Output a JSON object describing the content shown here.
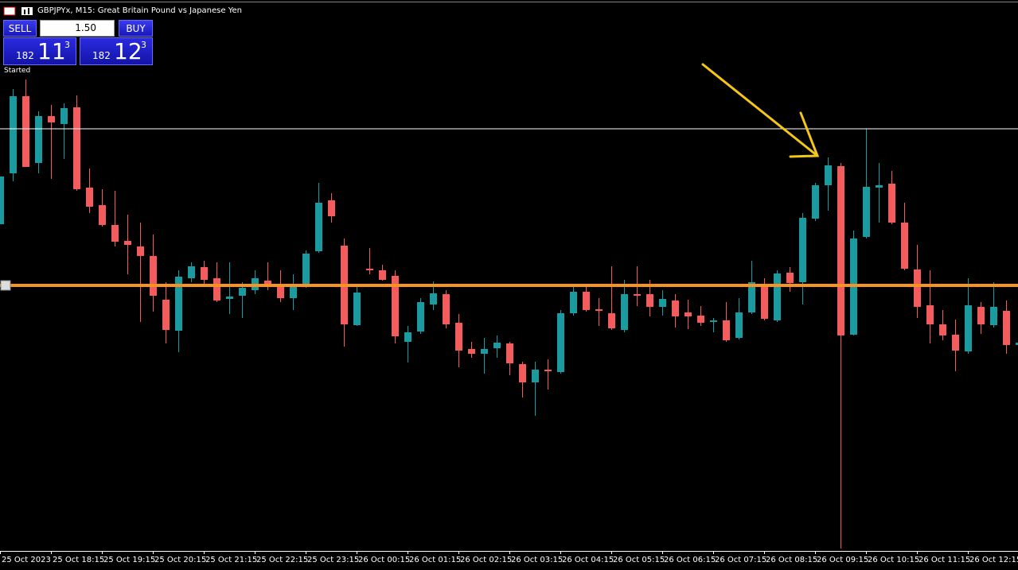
{
  "window": {
    "symbol": "GBPJPYx, M15:",
    "description": "Great Britain Pound vs Japanese Yen",
    "status": "Started"
  },
  "trade_panel": {
    "sell_label": "SELL",
    "buy_label": "BUY",
    "volume": "1.50",
    "sell_price": {
      "big": "182",
      "pips": "11",
      "point": "3"
    },
    "buy_price": {
      "big": "182",
      "pips": "12",
      "point": "3"
    }
  },
  "chart_data": {
    "type": "candlestick",
    "categories": [
      "25 Oct 2023",
      null,
      null,
      null,
      "25 Oct 18:15",
      null,
      null,
      null,
      "25 Oct 19:15",
      null,
      null,
      null,
      "25 Oct 20:15",
      null,
      null,
      null,
      "25 Oct 21:15",
      null,
      null,
      null,
      "25 Oct 22:15",
      null,
      null,
      null,
      "25 Oct 23:15",
      null,
      null,
      null,
      "26 Oct 00:15",
      null,
      null,
      null,
      "26 Oct 01:15",
      null,
      null,
      null,
      "26 Oct 02:15",
      null,
      null,
      null,
      "26 Oct 03:15",
      null,
      null,
      null,
      "26 Oct 04:15",
      null,
      null,
      null,
      "26 Oct 05:15",
      null,
      null,
      null,
      "26 Oct 06:15",
      null,
      null,
      null,
      "26 Oct 07:15",
      null,
      null,
      null,
      "26 Oct 08:15",
      null,
      null,
      null,
      "26 Oct 09:15",
      null,
      null,
      null,
      "26 Oct 10:15",
      null,
      null,
      null,
      "26 Oct 11:15",
      null,
      null,
      null,
      "26 Oct 12:15",
      null,
      null,
      null,
      null
    ],
    "open": [
      182.436,
      182.564,
      182.758,
      182.59,
      182.708,
      182.688,
      182.73,
      182.528,
      182.484,
      182.434,
      182.394,
      182.38,
      182.356,
      182.246,
      182.168,
      182.3,
      182.328,
      182.3,
      182.248,
      182.256,
      182.27,
      182.294,
      182.286,
      182.25,
      182.28,
      182.368,
      182.496,
      182.382,
      182.182,
      182.324,
      182.32,
      182.306,
      182.14,
      182.166,
      182.234,
      182.26,
      182.188,
      182.122,
      182.11,
      182.124,
      182.136,
      182.084,
      182.038,
      182.07,
      182.064,
      182.212,
      182.266,
      182.222,
      182.212,
      182.17,
      182.26,
      182.26,
      182.228,
      182.244,
      182.214,
      182.206,
      182.19,
      182.194,
      182.15,
      182.214,
      182.282,
      182.194,
      182.314,
      182.29,
      182.45,
      182.534,
      182.582,
      182.158,
      182.404,
      182.528,
      182.538,
      182.44,
      182.322,
      182.232,
      182.184,
      182.158,
      182.116,
      182.228,
      182.182,
      182.218,
      182.132
    ],
    "high": [
      182.556,
      182.776,
      182.8,
      182.72,
      182.736,
      182.74,
      182.76,
      182.576,
      182.524,
      182.52,
      182.46,
      182.44,
      182.41,
      182.29,
      182.32,
      182.34,
      182.344,
      182.34,
      182.34,
      182.29,
      182.32,
      182.34,
      182.32,
      182.31,
      182.37,
      182.54,
      182.514,
      182.4,
      182.28,
      182.376,
      182.334,
      182.32,
      182.18,
      182.25,
      182.292,
      182.27,
      182.21,
      182.14,
      182.15,
      182.156,
      182.14,
      182.09,
      182.09,
      182.096,
      182.22,
      182.286,
      182.284,
      182.25,
      182.33,
      182.296,
      182.33,
      182.296,
      182.27,
      182.26,
      182.246,
      182.23,
      182.2,
      182.24,
      182.25,
      182.344,
      182.3,
      182.32,
      182.328,
      182.464,
      182.54,
      182.604,
      182.59,
      182.42,
      182.676,
      182.59,
      182.57,
      182.49,
      182.384,
      182.32,
      182.22,
      182.196,
      182.3,
      182.24,
      182.29,
      182.244,
      182.138
    ],
    "low": [
      182.436,
      182.544,
      182.58,
      182.564,
      182.55,
      182.6,
      182.52,
      182.464,
      182.43,
      182.38,
      182.31,
      182.19,
      182.216,
      182.136,
      182.114,
      182.29,
      182.28,
      182.24,
      182.21,
      182.2,
      182.26,
      182.27,
      182.24,
      182.22,
      182.276,
      182.364,
      182.44,
      182.128,
      182.18,
      182.31,
      182.294,
      182.136,
      182.088,
      182.16,
      182.22,
      182.174,
      182.076,
      182.1,
      182.06,
      182.1,
      182.056,
      182.0,
      181.954,
      182.02,
      182.06,
      182.206,
      182.216,
      182.18,
      182.17,
      182.164,
      182.23,
      182.204,
      182.206,
      182.176,
      182.172,
      182.18,
      182.164,
      182.14,
      182.146,
      182.21,
      182.194,
      182.19,
      182.266,
      182.234,
      182.444,
      182.47,
      181.62,
      182.156,
      182.4,
      182.44,
      182.436,
      182.32,
      182.2,
      182.136,
      182.144,
      182.066,
      182.11,
      182.16,
      182.176,
      182.11,
      182.132
    ],
    "close": [
      182.556,
      182.758,
      182.58,
      182.708,
      182.692,
      182.728,
      182.524,
      182.48,
      182.434,
      182.392,
      182.384,
      182.356,
      182.256,
      182.17,
      182.304,
      182.33,
      182.296,
      182.244,
      182.254,
      182.276,
      182.3,
      182.284,
      182.25,
      182.284,
      182.362,
      182.49,
      182.456,
      182.184,
      182.264,
      182.32,
      182.296,
      182.154,
      182.164,
      182.24,
      182.262,
      182.184,
      182.118,
      182.11,
      182.122,
      182.138,
      182.086,
      182.038,
      182.07,
      182.066,
      182.212,
      182.266,
      182.22,
      182.218,
      182.174,
      182.26,
      182.256,
      182.228,
      182.248,
      182.204,
      182.204,
      182.188,
      182.194,
      182.144,
      182.214,
      182.29,
      182.198,
      182.312,
      182.288,
      182.452,
      182.534,
      182.584,
      182.156,
      182.4,
      182.53,
      182.534,
      182.44,
      182.324,
      182.228,
      182.184,
      182.156,
      182.118,
      182.232,
      182.184,
      182.228,
      182.132,
      182.138
    ],
    "up_color": "#1b9aa0",
    "down_color": "#f25c5c",
    "hlines": [
      {
        "value": 182.676,
        "color": "#ffffff"
      },
      {
        "value": 182.282,
        "color": "#f7931e"
      }
    ],
    "ylim": [
      181.614,
      183.0
    ]
  }
}
